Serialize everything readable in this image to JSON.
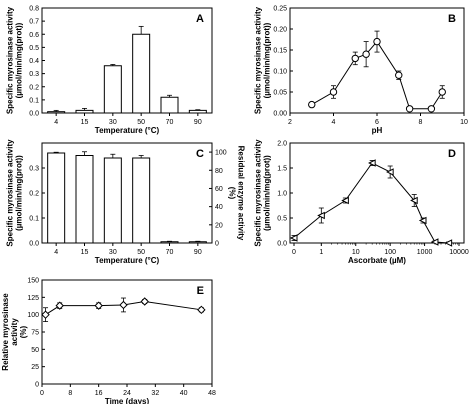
{
  "chart_data": [
    {
      "panel": "A",
      "type": "bar",
      "xlabel": "Temperature (°C)",
      "ylabel_lines": [
        "Specific myrosinase activity",
        "(µmol/min/mg(prot))"
      ],
      "categories": [
        "4",
        "15",
        "30",
        "50",
        "70",
        "90"
      ],
      "values": [
        0.01,
        0.02,
        0.36,
        0.6,
        0.12,
        0.02
      ],
      "errors": [
        0.01,
        0.015,
        0.01,
        0.06,
        0.015,
        0.005
      ],
      "ylim": [
        0,
        0.8
      ],
      "yticks": [
        "0.0",
        "0.1",
        "0.2",
        "0.3",
        "0.4",
        "0.5",
        "0.6",
        "0.7",
        "0.8"
      ]
    },
    {
      "panel": "B",
      "type": "line",
      "xlabel": "pH",
      "ylabel_lines": [
        "Specific myrosinase activity",
        "(µmol/min/mg(prot))"
      ],
      "x": [
        3,
        4,
        5,
        5.5,
        6,
        7,
        7.5,
        8.5,
        9
      ],
      "values": [
        0.02,
        0.05,
        0.13,
        0.14,
        0.17,
        0.09,
        0.01,
        0.01,
        0.05
      ],
      "errors": [
        0.005,
        0.015,
        0.015,
        0.03,
        0.025,
        0.01,
        0.005,
        0.005,
        0.015
      ],
      "xlim": [
        2,
        10
      ],
      "ylim": [
        0,
        0.25
      ],
      "xticks": [
        "2",
        "4",
        "6",
        "8",
        "10"
      ],
      "yticks": [
        "0.00",
        "0.05",
        "0.10",
        "0.15",
        "0.20",
        "0.25"
      ]
    },
    {
      "panel": "C",
      "type": "bar",
      "xlabel": "Temperature (°C)",
      "ylabel_lines": [
        "Specific myrosinase activity",
        "(µmol/min/mg(prot))"
      ],
      "ylabel_right_lines": [
        "Residual enzyme activity",
        "(%)"
      ],
      "categories": [
        "4",
        "15",
        "30",
        "50",
        "70",
        "90"
      ],
      "values": [
        0.36,
        0.35,
        0.34,
        0.34,
        0.005,
        0.005
      ],
      "errors": [
        0.003,
        0.015,
        0.015,
        0.01,
        0.002,
        0.002
      ],
      "ylim": [
        0,
        0.4
      ],
      "yticks": [
        "0.0",
        "0.1",
        "0.2",
        "0.3"
      ],
      "right_ylim": [
        0,
        110
      ],
      "right_yticks": [
        "0",
        "20",
        "40",
        "60",
        "80",
        "100"
      ]
    },
    {
      "panel": "D",
      "type": "line",
      "xlabel": "Ascorbate (µM)",
      "ylabel_lines": [
        "Specific myrosinase activity",
        "(µmol/min/mg(prot))"
      ],
      "x": [
        0,
        1,
        5,
        30,
        100,
        500,
        900,
        2000,
        5000
      ],
      "values": [
        0.1,
        0.55,
        0.85,
        1.6,
        1.42,
        0.85,
        0.45,
        0.02,
        0.0
      ],
      "errors": [
        0.05,
        0.15,
        0.05,
        0.05,
        0.12,
        0.12,
        0.05,
        0.02,
        0.02
      ],
      "xlim_decades": [
        0,
        4
      ],
      "ylim": [
        0,
        2.0
      ],
      "xticks": [
        "0",
        "1",
        "10",
        "100",
        "1000",
        "10000"
      ],
      "yticks": [
        "0.0",
        "0.5",
        "1.0",
        "1.5",
        "2.0"
      ]
    },
    {
      "panel": "E",
      "type": "line",
      "xlabel": "Time (days)",
      "ylabel_lines": [
        "Relative myrosinase",
        "activity",
        "(%)"
      ],
      "x": [
        1,
        5,
        16,
        23,
        29,
        45
      ],
      "values": [
        100,
        113,
        113,
        114,
        119,
        107
      ],
      "errors": [
        10,
        4,
        4,
        10,
        3,
        3
      ],
      "xlim": [
        0,
        48
      ],
      "ylim": [
        0,
        150
      ],
      "xticks": [
        "0",
        "8",
        "16",
        "24",
        "32",
        "40",
        "48"
      ],
      "yticks": [
        "0",
        "25",
        "50",
        "75",
        "100",
        "125",
        "150"
      ]
    }
  ]
}
